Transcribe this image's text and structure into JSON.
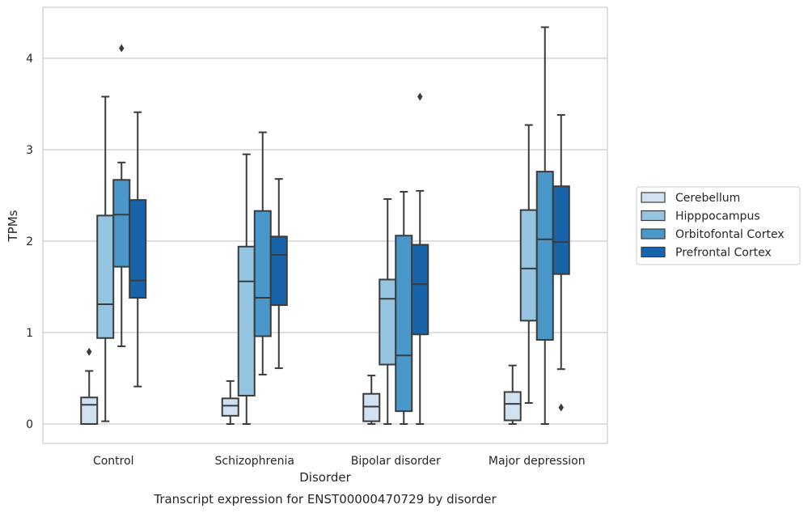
{
  "chart_data": {
    "type": "box",
    "title": "",
    "caption": "Transcript expression for ENST00000470729 by disorder",
    "xlabel": "Disorder",
    "ylabel": "TPMs",
    "ylim": [
      -0.2,
      4.55
    ],
    "yticks": [
      0,
      1,
      2,
      3,
      4
    ],
    "grid": true,
    "legend_position": "right",
    "categories": [
      "Control",
      "Schizophrenia",
      "Bipolar disorder",
      "Major depression"
    ],
    "series": [
      {
        "name": "Cerebellum",
        "color": "#d0e1f2",
        "boxes": [
          {
            "whisker_low": 0.0,
            "q1": 0.0,
            "median": 0.21,
            "q3": 0.29,
            "whisker_high": 0.58,
            "outliers": [
              0.79
            ]
          },
          {
            "whisker_low": 0.0,
            "q1": 0.09,
            "median": 0.2,
            "q3": 0.28,
            "whisker_high": 0.47,
            "outliers": []
          },
          {
            "whisker_low": 0.0,
            "q1": 0.03,
            "median": 0.19,
            "q3": 0.33,
            "whisker_high": 0.53,
            "outliers": []
          },
          {
            "whisker_low": 0.0,
            "q1": 0.04,
            "median": 0.22,
            "q3": 0.35,
            "whisker_high": 0.64,
            "outliers": []
          }
        ]
      },
      {
        "name": "Hipppocampus",
        "color": "#94c4df",
        "boxes": [
          {
            "whisker_low": 0.03,
            "q1": 0.94,
            "median": 1.31,
            "q3": 2.28,
            "whisker_high": 3.58,
            "outliers": []
          },
          {
            "whisker_low": 0.0,
            "q1": 0.31,
            "median": 1.56,
            "q3": 1.94,
            "whisker_high": 2.95,
            "outliers": []
          },
          {
            "whisker_low": 0.0,
            "q1": 0.65,
            "median": 1.37,
            "q3": 1.58,
            "whisker_high": 2.46,
            "outliers": []
          },
          {
            "whisker_low": 0.23,
            "q1": 1.13,
            "median": 1.7,
            "q3": 2.34,
            "whisker_high": 3.27,
            "outliers": []
          }
        ]
      },
      {
        "name": "Orbitofontal Cortex",
        "color": "#4a98c9",
        "boxes": [
          {
            "whisker_low": 0.85,
            "q1": 1.72,
            "median": 2.29,
            "q3": 2.67,
            "whisker_high": 2.86,
            "outliers": [
              4.11
            ]
          },
          {
            "whisker_low": 0.54,
            "q1": 0.96,
            "median": 1.38,
            "q3": 2.33,
            "whisker_high": 3.19,
            "outliers": []
          },
          {
            "whisker_low": 0.0,
            "q1": 0.14,
            "median": 0.75,
            "q3": 2.06,
            "whisker_high": 2.54,
            "outliers": []
          },
          {
            "whisker_low": 0.0,
            "q1": 0.92,
            "median": 2.02,
            "q3": 2.76,
            "whisker_high": 4.34,
            "outliers": []
          }
        ]
      },
      {
        "name": "Prefrontal Cortex",
        "color": "#1764ab",
        "boxes": [
          {
            "whisker_low": 0.41,
            "q1": 1.38,
            "median": 1.57,
            "q3": 2.45,
            "whisker_high": 3.41,
            "outliers": []
          },
          {
            "whisker_low": 0.61,
            "q1": 1.3,
            "median": 1.85,
            "q3": 2.05,
            "whisker_high": 2.68,
            "outliers": []
          },
          {
            "whisker_low": 0.0,
            "q1": 0.98,
            "median": 1.53,
            "q3": 1.96,
            "whisker_high": 2.55,
            "outliers": [
              3.58
            ]
          },
          {
            "whisker_low": 0.6,
            "q1": 1.64,
            "median": 1.99,
            "q3": 2.6,
            "whisker_high": 3.38,
            "outliers": [
              0.18
            ]
          }
        ]
      }
    ]
  }
}
